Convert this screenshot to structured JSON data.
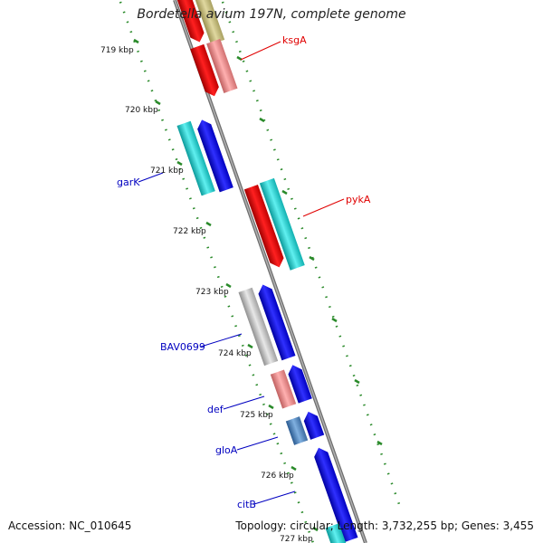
{
  "title": "Bordetella avium 197N, complete genome",
  "accession": "Accession: NC_010645",
  "summary": "Topology: circular; Length: 3,732,255 bp; Genes: 3,455",
  "colors": {
    "backbone": "#808080",
    "tick": "#2a8a2a",
    "label_red": "#e00000",
    "label_blue": "#0000c0",
    "red": "#ee0000",
    "salmon": "#f08080",
    "blue": "#0000ee",
    "cyan": "#1ccccc",
    "olive": "#c8c080",
    "gray": "#c0c0c0",
    "steel": "#4a7ab0"
  },
  "ticks": [
    "719 kbp",
    "720 kbp",
    "721 kbp",
    "722 kbp",
    "723 kbp",
    "724 kbp",
    "725 kbp",
    "726 kbp",
    "727 kbp"
  ],
  "genes": {
    "ksgA": "ksgA",
    "pykA": "pykA",
    "garK": "garK",
    "BAV0699": "BAV0699",
    "def": "def",
    "gloA": "gloA",
    "citB": "citB"
  }
}
